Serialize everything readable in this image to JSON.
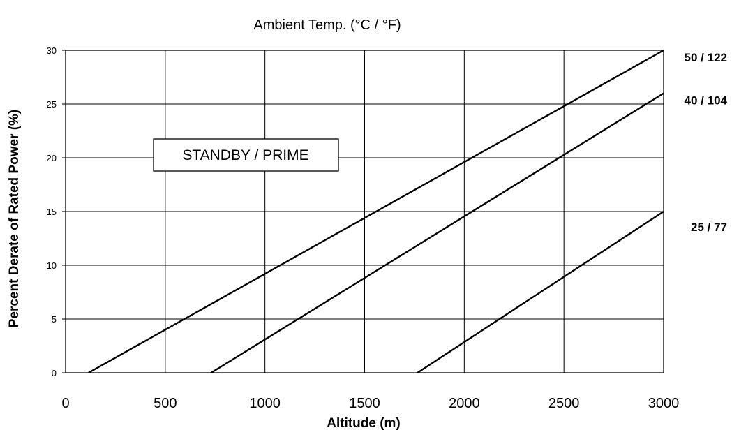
{
  "chart_data": {
    "type": "line",
    "title": "Ambient Temp. (°C / °F)",
    "xlabel": "Altitude (m)",
    "ylabel": "Percent Derate of Rated Power (%)",
    "xlim": [
      0,
      3000
    ],
    "ylim": [
      0,
      30
    ],
    "x_ticks": [
      0,
      500,
      1000,
      1500,
      2000,
      2500,
      3000
    ],
    "y_ticks": [
      0,
      5,
      10,
      15,
      20,
      25,
      30
    ],
    "grid": true,
    "annotation": "STANDBY / PRIME",
    "series": [
      {
        "name": "50 / 122",
        "x": [
          115,
          3000
        ],
        "y": [
          0,
          30
        ]
      },
      {
        "name": "40 / 104",
        "x": [
          730,
          3000
        ],
        "y": [
          0,
          26
        ]
      },
      {
        "name": "25 / 77",
        "x": [
          1765,
          3000
        ],
        "y": [
          0,
          15
        ]
      }
    ]
  }
}
